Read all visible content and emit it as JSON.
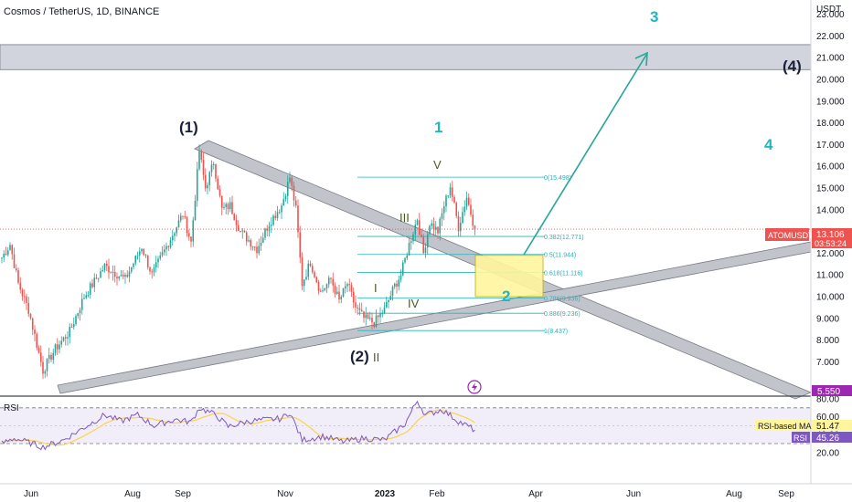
{
  "header": {
    "symbol_line": "Cosmos / TetherUS, 1D, BINANCE"
  },
  "axis": {
    "currency": "USDT",
    "price_ticks": [
      "23.000",
      "22.000",
      "21.000",
      "20.000",
      "19.000",
      "18.000",
      "17.000",
      "16.000",
      "15.000",
      "14.000",
      "13.000",
      "12.000",
      "11.000",
      "10.000",
      "9.000",
      "8.000",
      "7.000"
    ],
    "price_tick_values": [
      23,
      22,
      21,
      20,
      19,
      18,
      17,
      16,
      15,
      14,
      13,
      12,
      11,
      10,
      9,
      8,
      7
    ],
    "rsi_ticks": [
      "80.00",
      "60.00",
      "40.00",
      "20.00"
    ],
    "rsi_tick_values": [
      80,
      60,
      40,
      20
    ],
    "time_ticks": [
      "Jun",
      "Aug",
      "Sep",
      "Nov",
      "2023",
      "Feb",
      "Apr",
      "Jun",
      "Aug",
      "Sep"
    ]
  },
  "badges": {
    "ticker": "ATOMUSDT",
    "price": "13.106",
    "countdown": "03:53:24",
    "low": "5.550",
    "rsi_ma_label": "RSI-based MA",
    "rsi_ma_value": "51.47",
    "rsi_label": "RSI",
    "rsi_value": "45.26"
  },
  "rsi_pane": {
    "title": "RSI"
  },
  "waves": {
    "w1": "(1)",
    "w2": "(2)",
    "w4": "(4)",
    "n1": "1",
    "n2": "2",
    "n3": "3",
    "n4": "4",
    "i": "I",
    "ii": "II",
    "iii": "III",
    "iv": "IV",
    "v": "V"
  },
  "fib_levels": [
    {
      "label": "0(15.498)",
      "value": 15.498
    },
    {
      "label": "0.382(12.771)",
      "value": 12.771
    },
    {
      "label": "0.5(11.944)",
      "value": 11.944
    },
    {
      "label": "0.618(11.116)",
      "value": 11.116
    },
    {
      "label": "0.786(9.936)",
      "value": 9.936
    },
    {
      "label": "0.886(9.236)",
      "value": 9.236
    },
    {
      "label": "1(8.437)",
      "value": 8.437
    }
  ],
  "colors": {
    "up": "#26a69a",
    "down": "#ef5350",
    "teal_label": "#22b5bf",
    "wave_dark": "#1a1f3a",
    "rsi_line": "#7e57c2",
    "rsi_ma": "#f9d44a",
    "fib": "#22b5bf",
    "zone": "#fff176",
    "badge_red": "#ef5350",
    "badge_purple": "#9c27b0"
  },
  "chart_data": {
    "type": "candlestick",
    "current_price": 13.106,
    "price_range": [
      6.3,
      23.8
    ],
    "rsi_range": [
      10,
      84
    ],
    "resistance_zone": [
      20.45,
      21.6
    ],
    "target_zone": [
      10.0,
      11.9
    ],
    "price_swings": [
      {
        "bar": 0,
        "price": 11.8
      },
      {
        "bar": 4,
        "price": 12.4
      },
      {
        "bar": 8,
        "price": 10.6
      },
      {
        "bar": 13,
        "price": 9.4
      },
      {
        "bar": 17,
        "price": 7.8
      },
      {
        "bar": 20,
        "price": 6.6
      },
      {
        "bar": 26,
        "price": 7.6
      },
      {
        "bar": 33,
        "price": 8.4
      },
      {
        "bar": 40,
        "price": 10.0
      },
      {
        "bar": 50,
        "price": 11.4
      },
      {
        "bar": 60,
        "price": 10.8
      },
      {
        "bar": 68,
        "price": 12.3
      },
      {
        "bar": 73,
        "price": 11.0
      },
      {
        "bar": 80,
        "price": 12.3
      },
      {
        "bar": 88,
        "price": 13.8
      },
      {
        "bar": 92,
        "price": 12.5
      },
      {
        "bar": 96,
        "price": 16.7
      },
      {
        "bar": 99,
        "price": 15.0
      },
      {
        "bar": 103,
        "price": 16.2
      },
      {
        "bar": 107,
        "price": 14.0
      },
      {
        "bar": 111,
        "price": 14.2
      },
      {
        "bar": 116,
        "price": 13.0
      },
      {
        "bar": 124,
        "price": 12.2
      },
      {
        "bar": 130,
        "price": 13.4
      },
      {
        "bar": 136,
        "price": 14.2
      },
      {
        "bar": 140,
        "price": 15.5
      },
      {
        "bar": 143,
        "price": 14.0
      },
      {
        "bar": 146,
        "price": 10.6
      },
      {
        "bar": 150,
        "price": 11.6
      },
      {
        "bar": 155,
        "price": 10.2
      },
      {
        "bar": 160,
        "price": 10.8
      },
      {
        "bar": 164,
        "price": 9.8
      },
      {
        "bar": 168,
        "price": 10.6
      },
      {
        "bar": 172,
        "price": 9.5
      },
      {
        "bar": 176,
        "price": 9.0
      },
      {
        "bar": 181,
        "price": 8.8
      },
      {
        "bar": 186,
        "price": 9.4
      },
      {
        "bar": 191,
        "price": 10.5
      },
      {
        "bar": 194,
        "price": 11.0
      },
      {
        "bar": 198,
        "price": 12.4
      },
      {
        "bar": 202,
        "price": 13.6
      },
      {
        "bar": 205,
        "price": 12.0
      },
      {
        "bar": 208,
        "price": 13.4
      },
      {
        "bar": 212,
        "price": 13.0
      },
      {
        "bar": 215,
        "price": 14.2
      },
      {
        "bar": 218,
        "price": 15.1
      },
      {
        "bar": 222,
        "price": 13.2
      },
      {
        "bar": 226,
        "price": 14.6
      },
      {
        "bar": 230,
        "price": 13.1
      }
    ],
    "rsi_swings": [
      {
        "bar": 0,
        "rsi": 30
      },
      {
        "bar": 6,
        "rsi": 36
      },
      {
        "bar": 12,
        "rsi": 32
      },
      {
        "bar": 20,
        "rsi": 26
      },
      {
        "bar": 30,
        "rsi": 34
      },
      {
        "bar": 40,
        "rsi": 48
      },
      {
        "bar": 50,
        "rsi": 62
      },
      {
        "bar": 58,
        "rsi": 55
      },
      {
        "bar": 66,
        "rsi": 62
      },
      {
        "bar": 74,
        "rsi": 50
      },
      {
        "bar": 84,
        "rsi": 57
      },
      {
        "bar": 92,
        "rsi": 54
      },
      {
        "bar": 96,
        "rsi": 70
      },
      {
        "bar": 104,
        "rsi": 62
      },
      {
        "bar": 110,
        "rsi": 49
      },
      {
        "bar": 120,
        "rsi": 55
      },
      {
        "bar": 136,
        "rsi": 58
      },
      {
        "bar": 140,
        "rsi": 65
      },
      {
        "bar": 146,
        "rsi": 34
      },
      {
        "bar": 156,
        "rsi": 38
      },
      {
        "bar": 166,
        "rsi": 32
      },
      {
        "bar": 176,
        "rsi": 36
      },
      {
        "bar": 186,
        "rsi": 34
      },
      {
        "bar": 196,
        "rsi": 52
      },
      {
        "bar": 202,
        "rsi": 78
      },
      {
        "bar": 206,
        "rsi": 62
      },
      {
        "bar": 214,
        "rsi": 68
      },
      {
        "bar": 222,
        "rsi": 55
      },
      {
        "bar": 230,
        "rsi": 45
      }
    ]
  }
}
